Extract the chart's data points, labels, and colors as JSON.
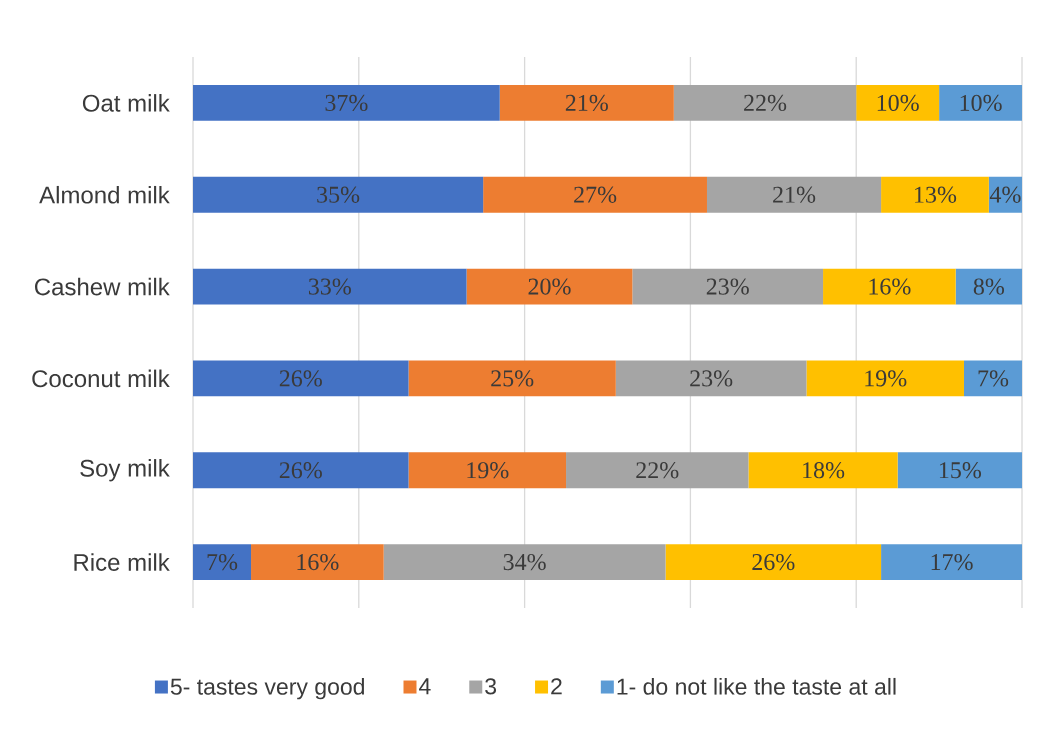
{
  "chart_data": {
    "type": "bar",
    "orientation": "horizontal",
    "stacked": true,
    "categories": [
      "Oat milk",
      "Almond milk",
      "Cashew milk",
      "Coconut milk",
      "Soy milk",
      "Rice milk"
    ],
    "series": [
      {
        "name": "5- tastes very good",
        "color": "#4472c4",
        "values": [
          37,
          35,
          33,
          26,
          26,
          7
        ],
        "value_labels": [
          "37%",
          "35%",
          "33%",
          "26%",
          "26%",
          "7%"
        ]
      },
      {
        "name": "4",
        "color": "#ed7d31",
        "values": [
          21,
          27,
          20,
          25,
          19,
          16
        ],
        "value_labels": [
          "21%",
          "27%",
          "20%",
          "25%",
          "19%",
          "16%"
        ]
      },
      {
        "name": "3",
        "color": "#a5a5a5",
        "values": [
          22,
          21,
          23,
          23,
          22,
          34
        ],
        "value_labels": [
          "22%",
          "21%",
          "23%",
          "23%",
          "22%",
          "34%"
        ]
      },
      {
        "name": "2",
        "color": "#ffc000",
        "values": [
          10,
          13,
          16,
          19,
          18,
          26
        ],
        "value_labels": [
          "10%",
          "13%",
          "16%",
          "19%",
          "18%",
          "26%"
        ]
      },
      {
        "name": "1- do not like the taste at all",
        "color": "#5b9bd5",
        "values": [
          10,
          4,
          8,
          7,
          15,
          17
        ],
        "value_labels": [
          "10%",
          "4%",
          "8%",
          "7%",
          "15%",
          "17%"
        ]
      }
    ],
    "xlim": [
      0,
      100
    ],
    "xticks": [
      {
        "value": 0,
        "label": null
      },
      {
        "value": 20,
        "label": null
      },
      {
        "value": 40,
        "label": null
      },
      {
        "value": 60,
        "label": null
      },
      {
        "value": 80,
        "label": null
      },
      {
        "value": 100,
        "label": null
      }
    ],
    "grid": "x",
    "legend": "bottom",
    "tick_labels": "y"
  }
}
